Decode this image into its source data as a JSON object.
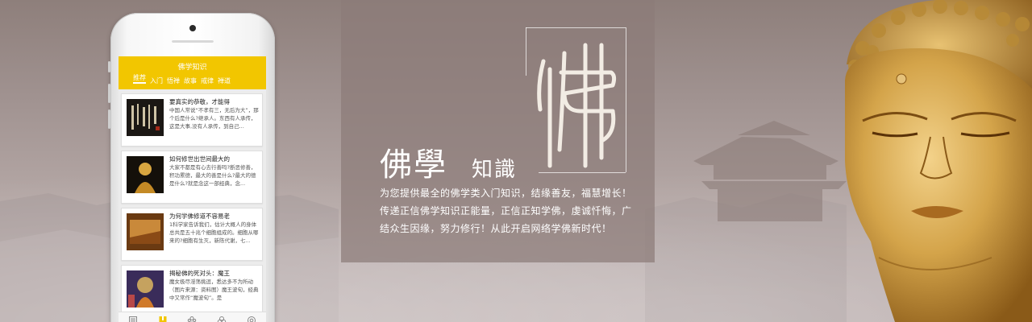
{
  "phone": {
    "app_title": "佛学知识",
    "tabs": [
      "推荐",
      "入门",
      "悟禅",
      "故事",
      "戒律",
      "禅道"
    ],
    "articles": [
      {
        "title": "要真实的恭敬，才能得",
        "body": "中国人常说“不孝有三，无后为大”，那个后是什么?继承人。东西有人承传，这是大事,没有人承传，到自己..."
      },
      {
        "title": "如何修世出世间最大的",
        "body": "大家不都是有心去行善吗?断恶修善，积功累德，最大的善是什么?最大的德是什么?就是念这一部经典，念..."
      },
      {
        "title": "为何学佛修道不容易老",
        "body": "1科学家告诉我们，估计大概人的身体总共是五十兆个细胞组成的。细胞从哪来的?细胞有生灭，新陈代谢，七..."
      },
      {
        "title": "揭秘佛的死对头：魔王",
        "body": "魔女极尽淫荡挑逗，悉达多不为所动（图片来源：资料图）魔王波旬，经典中又常作“魔波旬”。是"
      }
    ],
    "tabbar": [
      "新闻",
      "知识",
      "问佛",
      "佛缘",
      "工具"
    ]
  },
  "panel": {
    "big_char": "佛",
    "title_big": "佛學",
    "title_small": "知識",
    "description": "为您提供最全的佛学类入门知识，结缘善友，福慧增长！传递正信佛学知识正能量，正信正知学佛，虔诚忏悔，广结众生因缘，努力修行！从此开启网络学佛新时代！"
  },
  "colors": {
    "accent": "#f2c600",
    "background": "#a09290",
    "panel": "#8c7c78"
  }
}
